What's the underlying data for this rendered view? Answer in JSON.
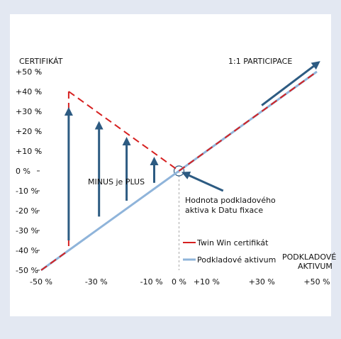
{
  "chart_data": {
    "type": "line",
    "x_axis": {
      "range": [
        -50,
        50
      ],
      "tick_values": [
        -50,
        -30,
        -10,
        0,
        10,
        30,
        50
      ],
      "tick_labels": [
        "-50 %",
        "-30 %",
        "-10 %",
        "0 %",
        "+10 %",
        "+30 %",
        "+50 %"
      ],
      "label_line1": "PODKLADOVÉ",
      "label_line2": "AKTIVUM"
    },
    "y_axis": {
      "range": [
        -50,
        50
      ],
      "tick_values": [
        50,
        40,
        30,
        20,
        10,
        0,
        -10,
        -20,
        -30,
        -40,
        -50
      ],
      "tick_labels": [
        "+50 %",
        "+40 %",
        "+30 %",
        "+20 %",
        "+10 %",
        "0 %",
        "-10 %",
        "-20 %",
        "-30 %",
        "-40 %",
        "-50 %"
      ],
      "label": "CERTIFIKÁT"
    },
    "series": [
      {
        "name": "Twin Win certifikát",
        "style": "dashed",
        "color": "#d62020",
        "points": [
          [
            -40,
            40
          ],
          [
            0,
            0
          ],
          [
            50,
            50
          ]
        ],
        "vertical_drop": [
          [
            -40,
            40
          ],
          [
            -40,
            -40
          ]
        ],
        "lower_segment": [
          [
            -50,
            -50
          ],
          [
            -40,
            -40
          ]
        ]
      },
      {
        "name": "Podkladové aktivum",
        "style": "solid",
        "color": "#8fb4da",
        "points": [
          [
            -50,
            -50
          ],
          [
            50,
            50
          ]
        ]
      }
    ],
    "up_arrows": [
      {
        "x": -40,
        "from": -35,
        "to": 30
      },
      {
        "x": -29,
        "from": -23,
        "to": 23
      },
      {
        "x": -19,
        "from": -15,
        "to": 15
      },
      {
        "x": -9,
        "from": -6,
        "to": 5
      }
    ],
    "participation_arrow": {
      "from": [
        30,
        33
      ],
      "to": [
        50,
        54
      ]
    },
    "pointer_arrow": {
      "from": [
        16,
        -10
      ],
      "to": [
        1,
        0
      ]
    },
    "annotations": {
      "minus_plus": "MINUS je PLUS",
      "participation": "1:1 PARTICIPACE",
      "fixing_line1": "Hodnota podkladového",
      "fixing_line2": "aktiva k Datu fixace"
    },
    "colors": {
      "arrow": "#2d5b82",
      "axis": "#333333",
      "background": "#ffffff",
      "frame": "#e3e8f2"
    }
  }
}
